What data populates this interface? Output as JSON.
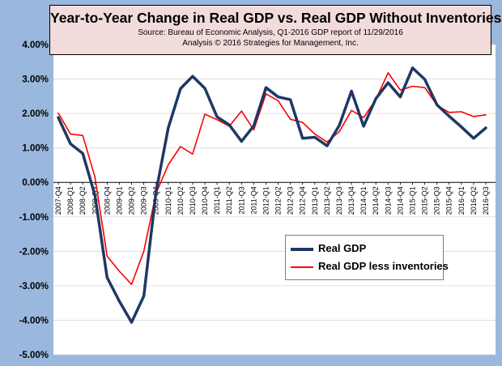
{
  "title": {
    "main": "Year-to-Year Change in Real GDP vs. Real GDP Without Inventories",
    "source": "Source: Bureau of Economic Analysis, Q1-2016 GDP report of 11/29/2016",
    "analysis": "Analysis © 2016 Strategies for Management, Inc."
  },
  "legend": {
    "position": "center-right",
    "items": [
      {
        "label": "Real GDP",
        "color": "#1f3864"
      },
      {
        "label": "Real GDP less inventories",
        "color": "#ff0000"
      }
    ]
  },
  "colors": {
    "background": "#9ab7dd",
    "plot_area": "#ffffff",
    "title_box": "#f2dcdb",
    "gridline": "#d9d9d9"
  },
  "chart_data": {
    "type": "line",
    "grid": true,
    "ylim": [
      -5,
      4
    ],
    "y_ticks": [
      "4.00%",
      "3.00%",
      "2.00%",
      "1.00%",
      "0.00%",
      "-1.00%",
      "-2.00%",
      "-3.00%",
      "-4.00%",
      "-5.00%"
    ],
    "y_tick_values": [
      4,
      3,
      2,
      1,
      0,
      -1,
      -2,
      -3,
      -4,
      -5
    ],
    "categories": [
      "2007-Q4",
      "2008-Q1",
      "2008-Q2",
      "2008-Q3",
      "2008-Q4",
      "2009-Q1",
      "2009-Q2",
      "2009-Q3",
      "2009-Q4",
      "2010-Q1",
      "2010-Q2",
      "2010-Q3",
      "2010-Q4",
      "2011-Q1",
      "2011-Q2",
      "2011-Q3",
      "2011-Q4",
      "2012-Q1",
      "2012-Q2",
      "2012-Q3",
      "2012-Q4",
      "2013-Q1",
      "2013-Q2",
      "2013-Q3",
      "2013-Q4",
      "2014-Q1",
      "2014-Q2",
      "2014-Q3",
      "2014-Q4",
      "2015-Q1",
      "2015-Q2",
      "2015-Q3",
      "2015-Q4",
      "2016-Q1",
      "2016-Q2",
      "2016-Q3"
    ],
    "series": [
      {
        "name": "Real GDP",
        "values": [
          1.88,
          1.12,
          0.84,
          -0.38,
          -2.76,
          -3.45,
          -4.06,
          -3.3,
          -0.28,
          1.58,
          2.72,
          3.08,
          2.73,
          1.9,
          1.67,
          1.19,
          1.64,
          2.75,
          2.48,
          2.4,
          1.28,
          1.31,
          1.06,
          1.65,
          2.65,
          1.63,
          2.43,
          2.89,
          2.48,
          3.32,
          2.99,
          2.25,
          1.92,
          1.61,
          1.28,
          1.58
        ]
      },
      {
        "name": "Real GDP less inventories",
        "values": [
          2.01,
          1.4,
          1.36,
          0.15,
          -2.14,
          -2.58,
          -2.96,
          -2.0,
          -0.32,
          0.51,
          1.04,
          0.82,
          1.98,
          1.82,
          1.63,
          2.07,
          1.52,
          2.57,
          2.37,
          1.83,
          1.74,
          1.4,
          1.17,
          1.47,
          2.09,
          1.88,
          2.41,
          3.18,
          2.68,
          2.79,
          2.75,
          2.24,
          2.03,
          2.05,
          1.91,
          1.96
        ]
      }
    ]
  }
}
